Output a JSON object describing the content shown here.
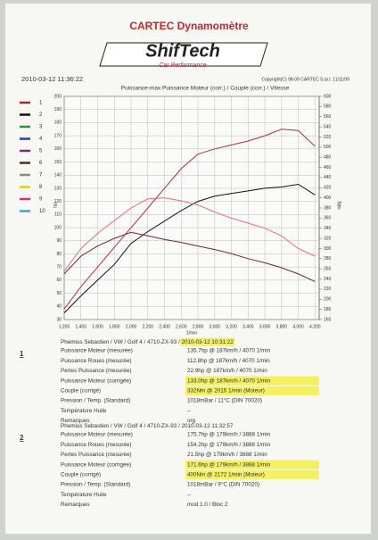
{
  "header": {
    "title": "CARTEC Dynamomètre",
    "logo": "ShifTech",
    "logo_sub": "Car Performance",
    "datetime": "2010-03-12 11:36:22",
    "copyright": "Copyright(C) 98-09 CARTEC S.àr.l. 11/11/09"
  },
  "legend": [
    {
      "label": "1",
      "color": "#9e2a2a"
    },
    {
      "label": "2",
      "color": "#111111"
    },
    {
      "label": "3",
      "color": "#2e8b3a"
    },
    {
      "label": "4",
      "color": "#2a3f9e"
    },
    {
      "label": "5",
      "color": "#7a2a6e"
    },
    {
      "label": "6",
      "color": "#5a2a1a"
    },
    {
      "label": "7",
      "color": "#8a8a8a"
    },
    {
      "label": "8",
      "color": "#e0d020"
    },
    {
      "label": "9",
      "color": "#d0307a"
    },
    {
      "label": "10",
      "color": "#30a8d8"
    }
  ],
  "chart_data": {
    "type": "line",
    "title": "Puissance-max Puissance Moteur (corr.) / Couple (corr.) / Vitesse",
    "y_label": "hp",
    "y2_label": "Nm",
    "x_label": "1/min",
    "x": [
      1200,
      1400,
      1600,
      1800,
      2000,
      2200,
      2400,
      2600,
      2800,
      3000,
      3200,
      3400,
      3600,
      3800,
      4000,
      4200
    ],
    "xlim": [
      1200,
      4250
    ],
    "xticks": [
      {
        "value": 1200,
        "label": "1,200"
      },
      {
        "value": 1400,
        "label": "1,400"
      },
      {
        "value": 1600,
        "label": "1,600"
      },
      {
        "value": 1800,
        "label": "1,800"
      },
      {
        "value": 2000,
        "label": "2,000"
      },
      {
        "value": 2200,
        "label": "2,200"
      },
      {
        "value": 2400,
        "label": "2,400"
      },
      {
        "value": 2600,
        "label": "2,600"
      },
      {
        "value": 2800,
        "label": "2,800"
      },
      {
        "value": 3000,
        "label": "3,000"
      },
      {
        "value": 3200,
        "label": "3,200"
      },
      {
        "value": 3400,
        "label": "3,400"
      },
      {
        "value": 3600,
        "label": "3,600"
      },
      {
        "value": 3800,
        "label": "3,800"
      },
      {
        "value": 4000,
        "label": "4,000"
      },
      {
        "value": 4200,
        "label": "4,200"
      }
    ],
    "ylim": [
      30,
      200
    ],
    "yticks": [
      30,
      40,
      50,
      60,
      70,
      80,
      90,
      100,
      110,
      120,
      130,
      140,
      150,
      160,
      170,
      180,
      190,
      200
    ],
    "y2lim": [
      160,
      600
    ],
    "y2ticks": [
      160,
      180,
      200,
      220,
      240,
      260,
      280,
      300,
      320,
      340,
      360,
      380,
      400,
      420,
      440,
      460,
      480,
      500,
      520,
      540,
      560,
      580,
      600
    ],
    "grid": true,
    "series": [
      {
        "color": "#111111",
        "values": [
          35,
          48,
          60,
          72,
          88,
          97,
          105,
          113,
          120,
          124,
          126,
          128,
          130,
          131,
          133,
          125
        ]
      },
      {
        "color": "#b0303a",
        "values": [
          38,
          55,
          70,
          85,
          100,
          115,
          130,
          145,
          156,
          160,
          163,
          166,
          170,
          175,
          174,
          162
        ]
      },
      {
        "color": "#6a2a2a",
        "axis": "y2",
        "values": [
          250,
          285,
          305,
          320,
          332,
          325,
          318,
          312,
          305,
          298,
          290,
          280,
          272,
          262,
          250,
          235
        ]
      },
      {
        "color": "#e07080",
        "axis": "y2",
        "values": [
          255,
          300,
          330,
          355,
          380,
          398,
          400,
          394,
          386,
          372,
          360,
          350,
          340,
          325,
          300,
          285
        ]
      }
    ]
  },
  "records": [
    {
      "number": "1",
      "heading": "Phemius Sebastien / VW / Golf 4 / 4710-ZX-93 / ",
      "date": "2010-03-12 10:31:22",
      "rows": [
        [
          "Puissance Moteur (mesurée)",
          "135.7hp @ 187km/h / 4070 1/min"
        ],
        [
          "Puissance Roues (mesurée)",
          "112.8hp @ 187km/h / 4070 1/min"
        ],
        [
          "Pertes Puissance (mesurée)",
          "22.9hp @ 187km/h / 4070 1/min"
        ],
        [
          "Puissance Moteur (corrigée)",
          "133.0hp @ 187km/h / 4070 1/min"
        ],
        [
          "Couple (corrigé)",
          "332Nm @ 2015 1/min (Moteur)"
        ],
        [
          "Pression / Temp. (Standard)",
          "1018mBar / 11°C   (DIN 70020)"
        ],
        [
          "Température Huile",
          "--"
        ],
        [
          "Remarques",
          "org"
        ]
      ]
    },
    {
      "number": "2",
      "heading": "Phemius Sebastien / VW / Golf 4 / 4710-ZX-93 / ",
      "date": "2010-03-12 11:32:57",
      "rows": [
        [
          "Puissance Moteur (mesurée)",
          "175.7hp @ 179km/h / 3888 1/min"
        ],
        [
          "Puissance Roues (mesurée)",
          "154.2hp @ 179km/h / 3888 1/min"
        ],
        [
          "Pertes Puissance (mesurée)",
          "21.5hp @ 179km/h / 3888 1/min"
        ],
        [
          "Puissance Moteur (corrigée)",
          "171.6hp @ 179km/h / 3888 1/min"
        ],
        [
          "Couple (corrigé)",
          "400Nm @ 2172 1/min (Moteur)"
        ],
        [
          "Pression / Temp. (Standard)",
          "1018mBar / 9°C   (DIN 70020)"
        ],
        [
          "Température Huile",
          "--"
        ],
        [
          "Remarques",
          "mod 1.0 / Bloc 2"
        ]
      ]
    }
  ]
}
